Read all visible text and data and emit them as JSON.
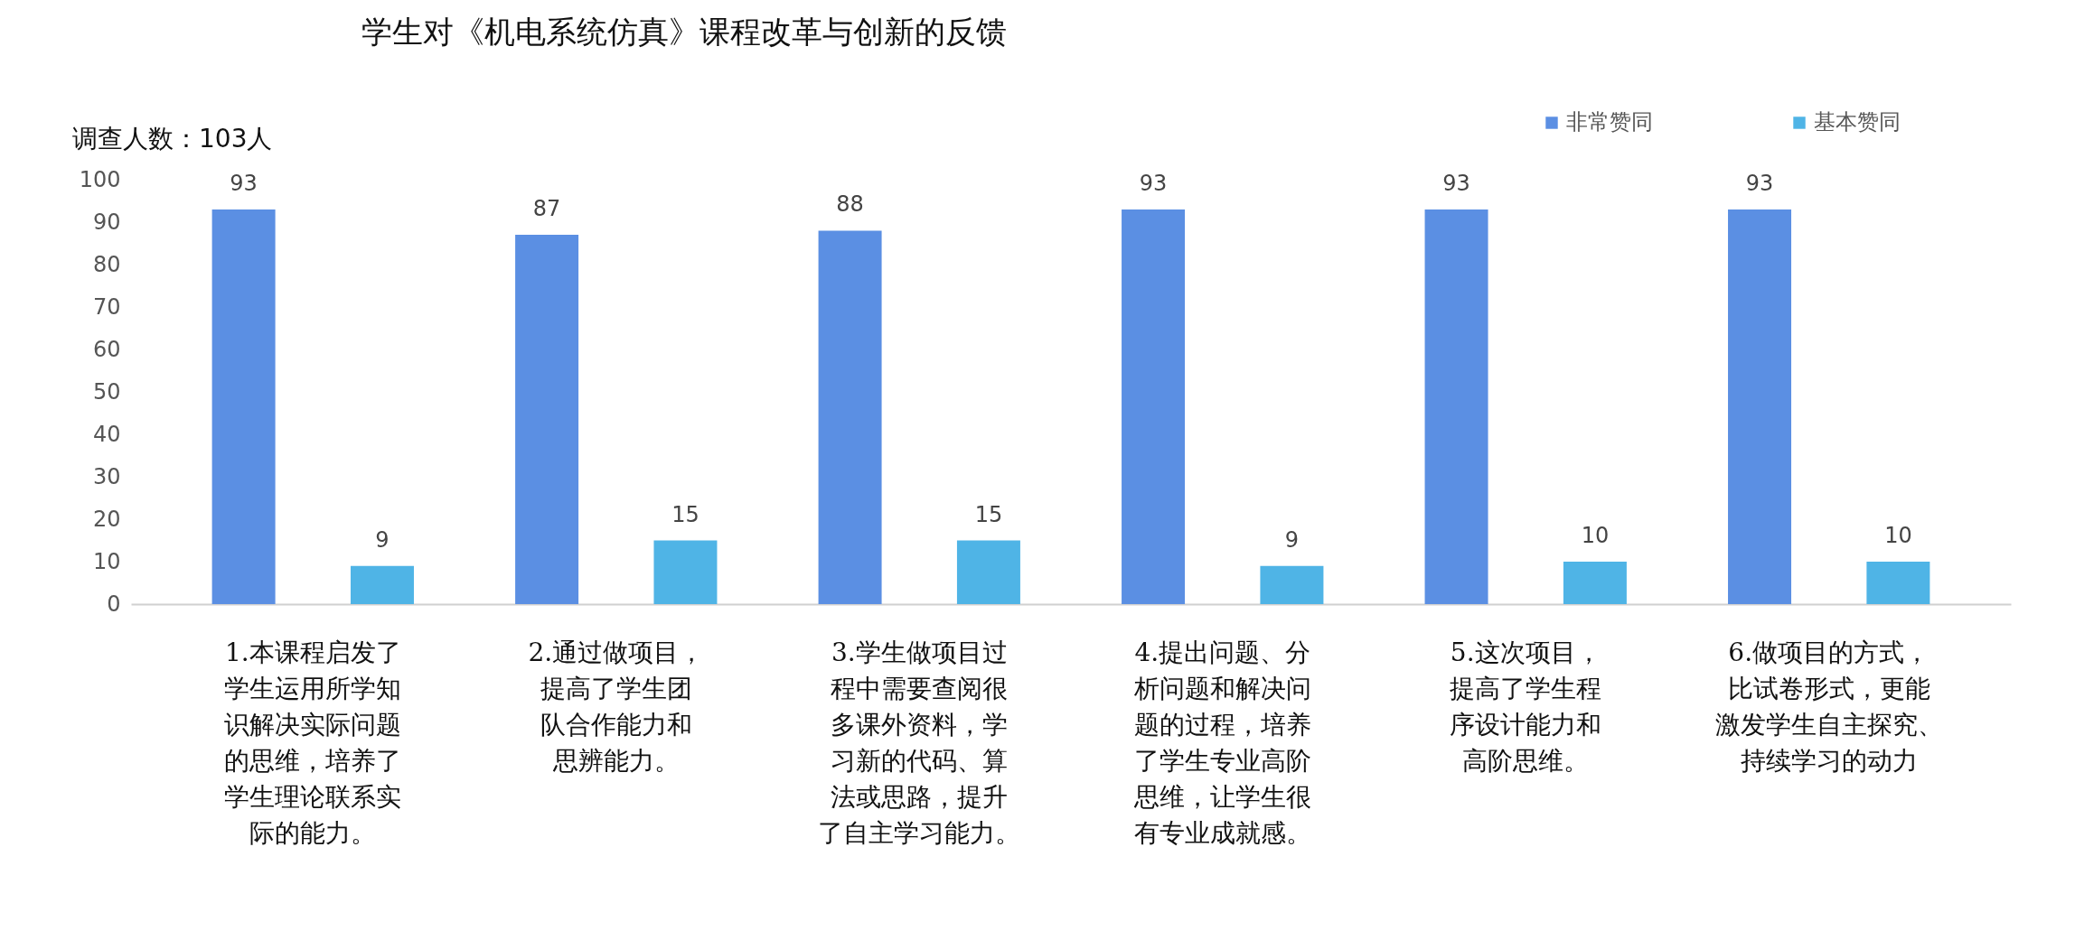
{
  "chart_data": {
    "type": "bar",
    "title": "学生对《机电系统仿真》课程改革与创新的反馈",
    "annotations": [
      "调查人数：103人"
    ],
    "categories": [
      "1.本课程启发了学生运用所学知识解决实际问题的思维，培养了学生理论联系实际的能力。",
      "2.通过做项目，提高了学生团队合作能力和思辨能力。",
      "3.学生做项目过程中需要查阅很多课外资料，学习新的代码、算法或思路，提升了自主学习能力。",
      "4.提出问题、分析问题和解决问题的过程，培养了学生专业高阶思维，让学生很有专业成就感。",
      "5.这次项目，提高了学生程序设计能力和高阶思维。",
      "6.做项目的方式，比试卷形式，更能激发学生自主探究、持续学习的动力"
    ],
    "series": [
      {
        "name": "非常赞同",
        "color": "#5b8fe3",
        "values": [
          93,
          87,
          88,
          93,
          93,
          93
        ]
      },
      {
        "name": "基本赞同",
        "color": "#4fb4e6",
        "values": [
          9,
          15,
          15,
          9,
          10,
          10
        ]
      }
    ],
    "ylim": [
      0,
      100
    ],
    "yticks": [
      0,
      10,
      20,
      30,
      40,
      50,
      60,
      70,
      80,
      90,
      100
    ],
    "grid": false,
    "legend": "top right",
    "data_labels": true
  }
}
